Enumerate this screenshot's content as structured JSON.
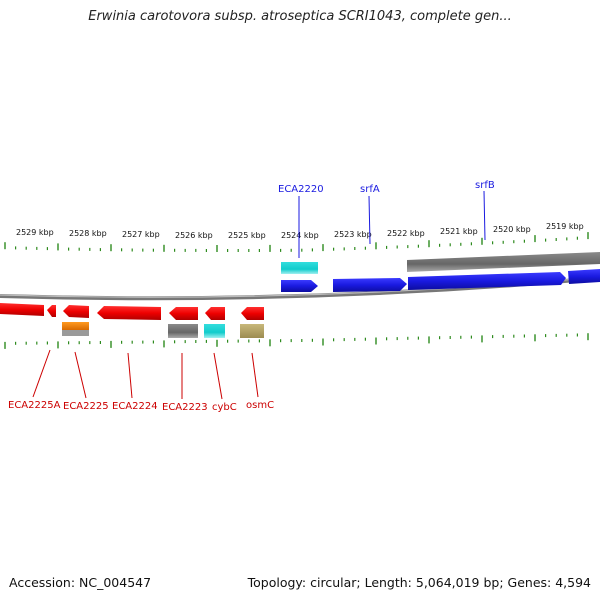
{
  "title": "Erwinia carotovora subsp. atroseptica SCRI1043, complete gen...",
  "footer": {
    "accession": "Accession: NC_004547",
    "summary": "Topology: circular; Length: 5,064,019 bp; Genes: 4,594"
  },
  "scale_labels": [
    "2529 kbp",
    "2528 kbp",
    "2527 kbp",
    "2526 kbp",
    "2525 kbp",
    "2524 kbp",
    "2523 kbp",
    "2522 kbp",
    "2521 kbp",
    "2520 kbp",
    "2519 kbp"
  ],
  "forward_labels": [
    "ECA2220",
    "srfA",
    "srfB"
  ],
  "reverse_labels": [
    "ECA2225A",
    "ECA2225",
    "ECA2224",
    "ECA2223",
    "cybC",
    "osmC"
  ],
  "colors": {
    "forward_gene": "#1a1ae0",
    "reverse_gene": "#ee0000",
    "tick": "#2e8b1e",
    "backbone": "#7a7a7a",
    "cyan_feature": "#11cccc",
    "orange_feature": "#f08000",
    "gray_feature": "#666666",
    "khaki_feature": "#b8a86a"
  }
}
